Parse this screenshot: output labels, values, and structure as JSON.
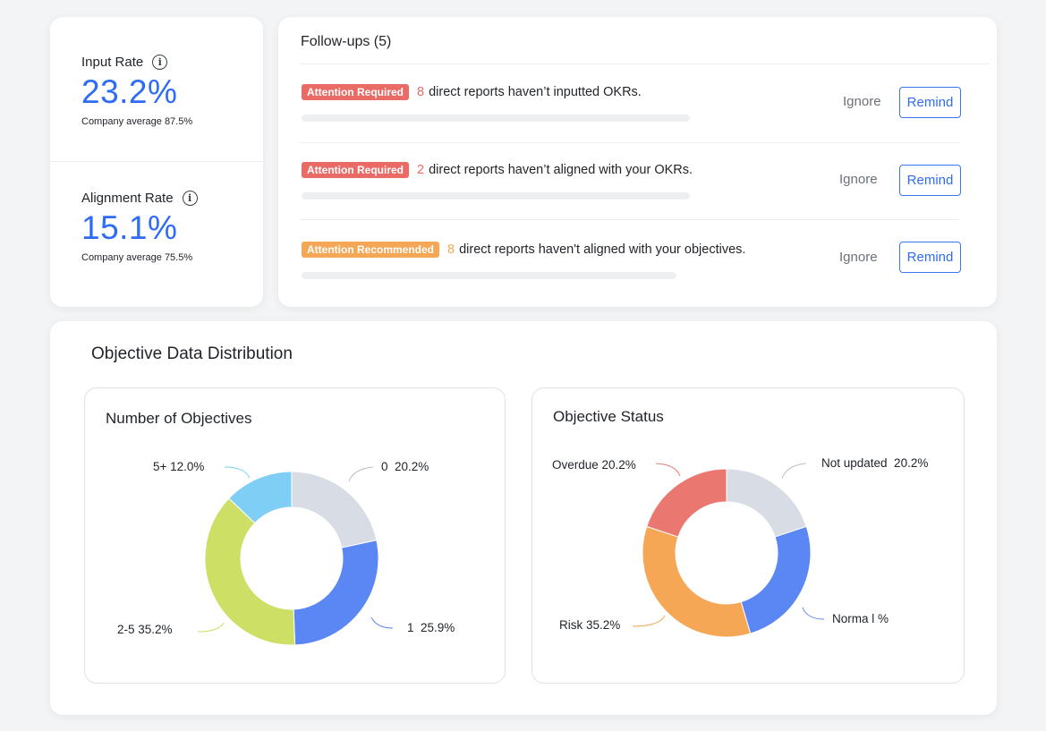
{
  "rates": {
    "input": {
      "label": "Input Rate",
      "value": "23.2%",
      "sub": "Company average 87.5%"
    },
    "alignment": {
      "label": "Alignment Rate",
      "value": "15.1%",
      "sub": "Company average 75.5%"
    }
  },
  "followups": {
    "title": "Follow-ups (5)",
    "items": [
      {
        "badge": "Attention Required",
        "level": "required",
        "count": "8",
        "text": "direct reports haven’t inputted OKRs.",
        "ignore": "Ignore",
        "remind": "Remind"
      },
      {
        "badge": "Attention Required",
        "level": "required",
        "count": "2",
        "text": "direct reports haven’t aligned with your OKRs.",
        "ignore": "Ignore",
        "remind": "Remind"
      },
      {
        "badge": "Attention Recommended",
        "level": "recommended",
        "count": "8",
        "text": "direct reports haven't aligned with your objectives.",
        "ignore": "Ignore",
        "remind": "Remind"
      }
    ]
  },
  "distribution": {
    "title": "Objective Data Distribution"
  },
  "colors": {
    "accent": "#2f6cf5",
    "required": "#ea6b66",
    "recommended": "#f5a756"
  },
  "chart_data": [
    {
      "type": "pie",
      "donut": true,
      "title": "Number of Objectives",
      "slices": [
        {
          "name": "0",
          "label": "0  20.2%",
          "value": 20.2,
          "color": "#d8dce5"
        },
        {
          "name": "1",
          "label": "1  25.9%",
          "value": 25.9,
          "color": "#5b87f5"
        },
        {
          "name": "2-5",
          "label": "2-5 35.2%",
          "value": 35.2,
          "color": "#cddf64"
        },
        {
          "name": "5+",
          "label": "5+ 12.0%",
          "value": 12.0,
          "color": "#7fcef5"
        }
      ]
    },
    {
      "type": "pie",
      "donut": true,
      "title": "Objective Status",
      "slices": [
        {
          "name": "Not updated",
          "label": "Not updated  20.2%",
          "value": 20.2,
          "color": "#d8dce5"
        },
        {
          "name": "Normal",
          "label": "Norma l %",
          "value": 25.9,
          "color": "#5b87f5"
        },
        {
          "name": "Risk",
          "label": "Risk 35.2%",
          "value": 35.2,
          "color": "#f5a756"
        },
        {
          "name": "Overdue",
          "label": "Overdue 20.2%",
          "value": 20.2,
          "color": "#ea7770"
        }
      ]
    }
  ]
}
